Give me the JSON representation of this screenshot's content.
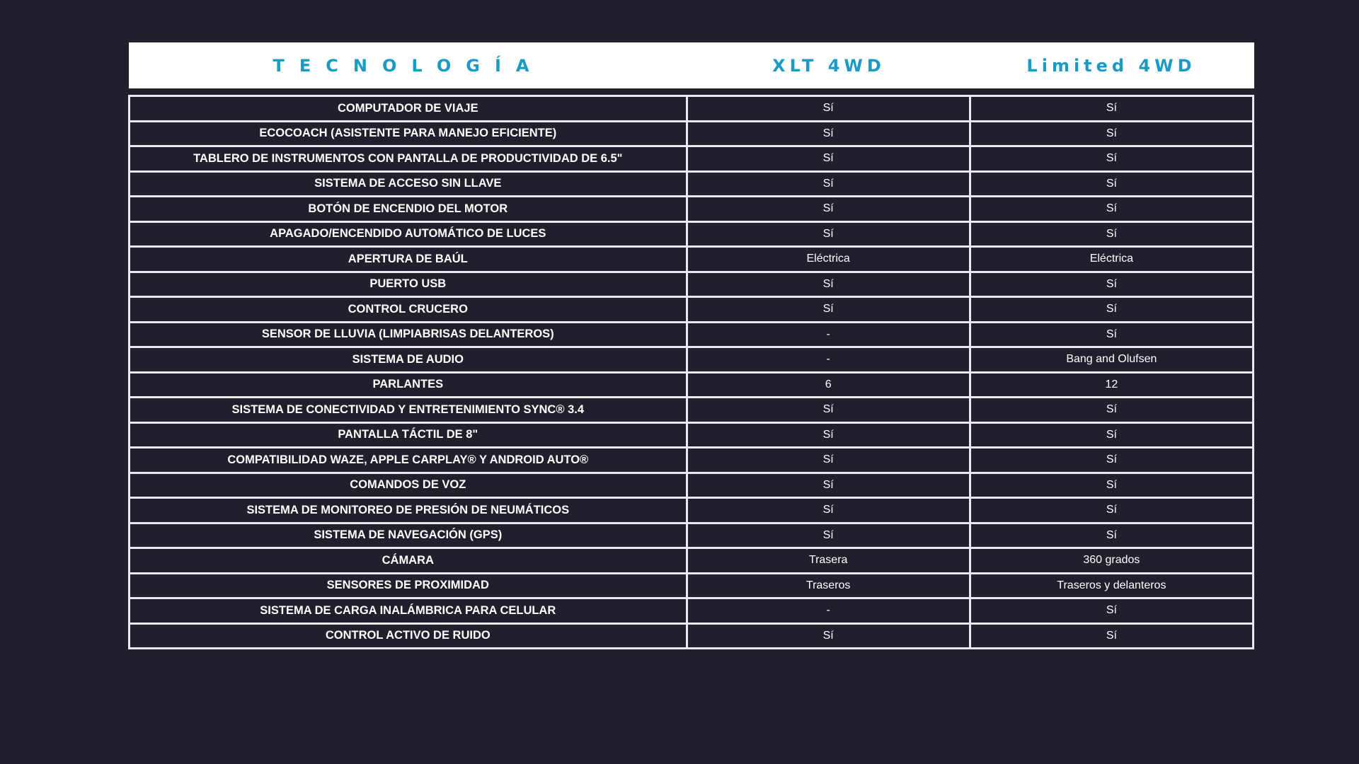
{
  "header": {
    "feature": "TECNOLOGÍA",
    "trim1": "XLT 4WD",
    "trim2": "Limited 4WD"
  },
  "colors": {
    "background": "#20202c",
    "accent": "#1b9ac6"
  },
  "rows": [
    {
      "feature": "COMPUTADOR DE VIAJE",
      "xlt": "Sí",
      "limited": "Sí"
    },
    {
      "feature": "ECOCOACH (ASISTENTE PARA MANEJO EFICIENTE)",
      "xlt": "Sí",
      "limited": "Sí"
    },
    {
      "feature": "TABLERO DE INSTRUMENTOS CON PANTALLA DE PRODUCTIVIDAD DE 6.5\"",
      "xlt": "Sí",
      "limited": "Sí"
    },
    {
      "feature": "SISTEMA DE ACCESO SIN LLAVE",
      "xlt": "Sí",
      "limited": "Sí"
    },
    {
      "feature": "BOTÓN DE ENCENDIO DEL MOTOR",
      "xlt": "Sí",
      "limited": "Sí"
    },
    {
      "feature": "APAGADO/ENCENDIDO AUTOMÁTICO DE LUCES",
      "xlt": "Sí",
      "limited": "Sí"
    },
    {
      "feature": "APERTURA DE BAÚL",
      "xlt": "Eléctrica",
      "limited": "Eléctrica"
    },
    {
      "feature": "PUERTO USB",
      "xlt": "Sí",
      "limited": "Sí"
    },
    {
      "feature": "CONTROL CRUCERO",
      "xlt": "Sí",
      "limited": "Sí"
    },
    {
      "feature": "SENSOR DE LLUVIA (LIMPIABRISAS DELANTEROS)",
      "xlt": "-",
      "limited": "Sí"
    },
    {
      "feature": "SISTEMA DE AUDIO",
      "xlt": "-",
      "limited": "Bang and Olufsen"
    },
    {
      "feature": "PARLANTES",
      "xlt": "6",
      "limited": "12"
    },
    {
      "feature": "SISTEMA DE CONECTIVIDAD Y ENTRETENIMIENTO SYNC® 3.4",
      "xlt": "Sí",
      "limited": "Sí"
    },
    {
      "feature": "PANTALLA TÁCTIL DE 8\"",
      "xlt": "Sí",
      "limited": "Sí"
    },
    {
      "feature": "COMPATIBILIDAD WAZE, APPLE CARPLAY® Y ANDROID AUTO®",
      "xlt": "Sí",
      "limited": "Sí"
    },
    {
      "feature": "COMANDOS DE VOZ",
      "xlt": "Sí",
      "limited": "Sí"
    },
    {
      "feature": "SISTEMA DE MONITOREO DE PRESIÓN DE NEUMÁTICOS",
      "xlt": "Sí",
      "limited": "Sí"
    },
    {
      "feature": "SISTEMA DE NAVEGACIÓN (GPS)",
      "xlt": "Sí",
      "limited": "Sí"
    },
    {
      "feature": "CÁMARA",
      "xlt": "Trasera",
      "limited": "360 grados"
    },
    {
      "feature": "SENSORES DE PROXIMIDAD",
      "xlt": "Traseros",
      "limited": "Traseros y delanteros"
    },
    {
      "feature": "SISTEMA DE CARGA INALÁMBRICA PARA CELULAR",
      "xlt": "-",
      "limited": "Sí"
    },
    {
      "feature": "CONTROL ACTIVO DE RUIDO",
      "xlt": "Sí",
      "limited": "Sí"
    }
  ]
}
